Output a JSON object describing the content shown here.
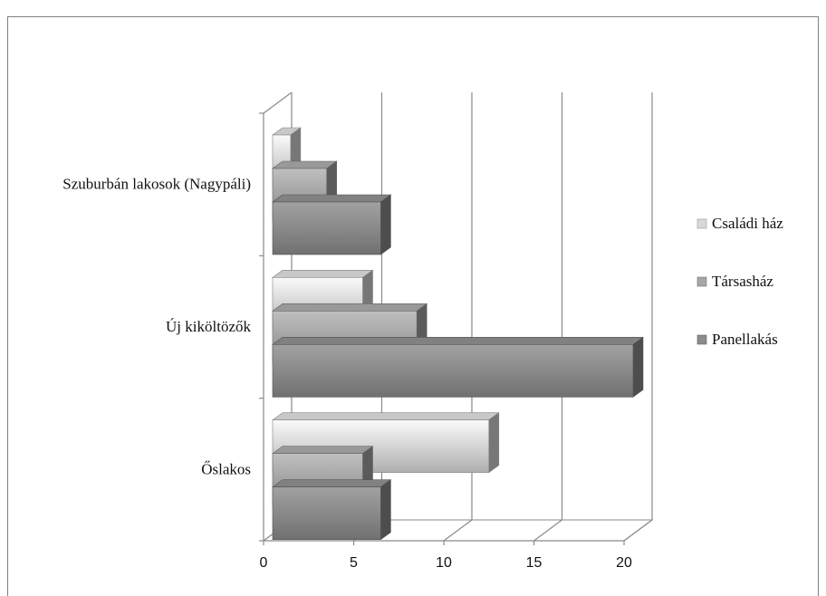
{
  "chart_data": {
    "type": "bar",
    "orientation": "horizontal",
    "style": "3d-step-bars",
    "categories": [
      "Szuburbán lakosok (Nagypáli)",
      "Új kiköltözők",
      "Őslakos"
    ],
    "series": [
      {
        "name": "Családi ház",
        "values": [
          1,
          5,
          12
        ],
        "color": "#d9d9d9"
      },
      {
        "name": "Társasház",
        "values": [
          3,
          8,
          5
        ],
        "color": "#a6a6a6"
      },
      {
        "name": "Panellakás",
        "values": [
          6,
          20,
          6
        ],
        "color": "#8c8c8c"
      }
    ],
    "xlim": [
      0,
      20
    ],
    "xticks": [
      "0",
      "5",
      "10",
      "15",
      "20"
    ],
    "grid": true,
    "legend": "right",
    "title": "",
    "xlabel": "",
    "ylabel": ""
  }
}
